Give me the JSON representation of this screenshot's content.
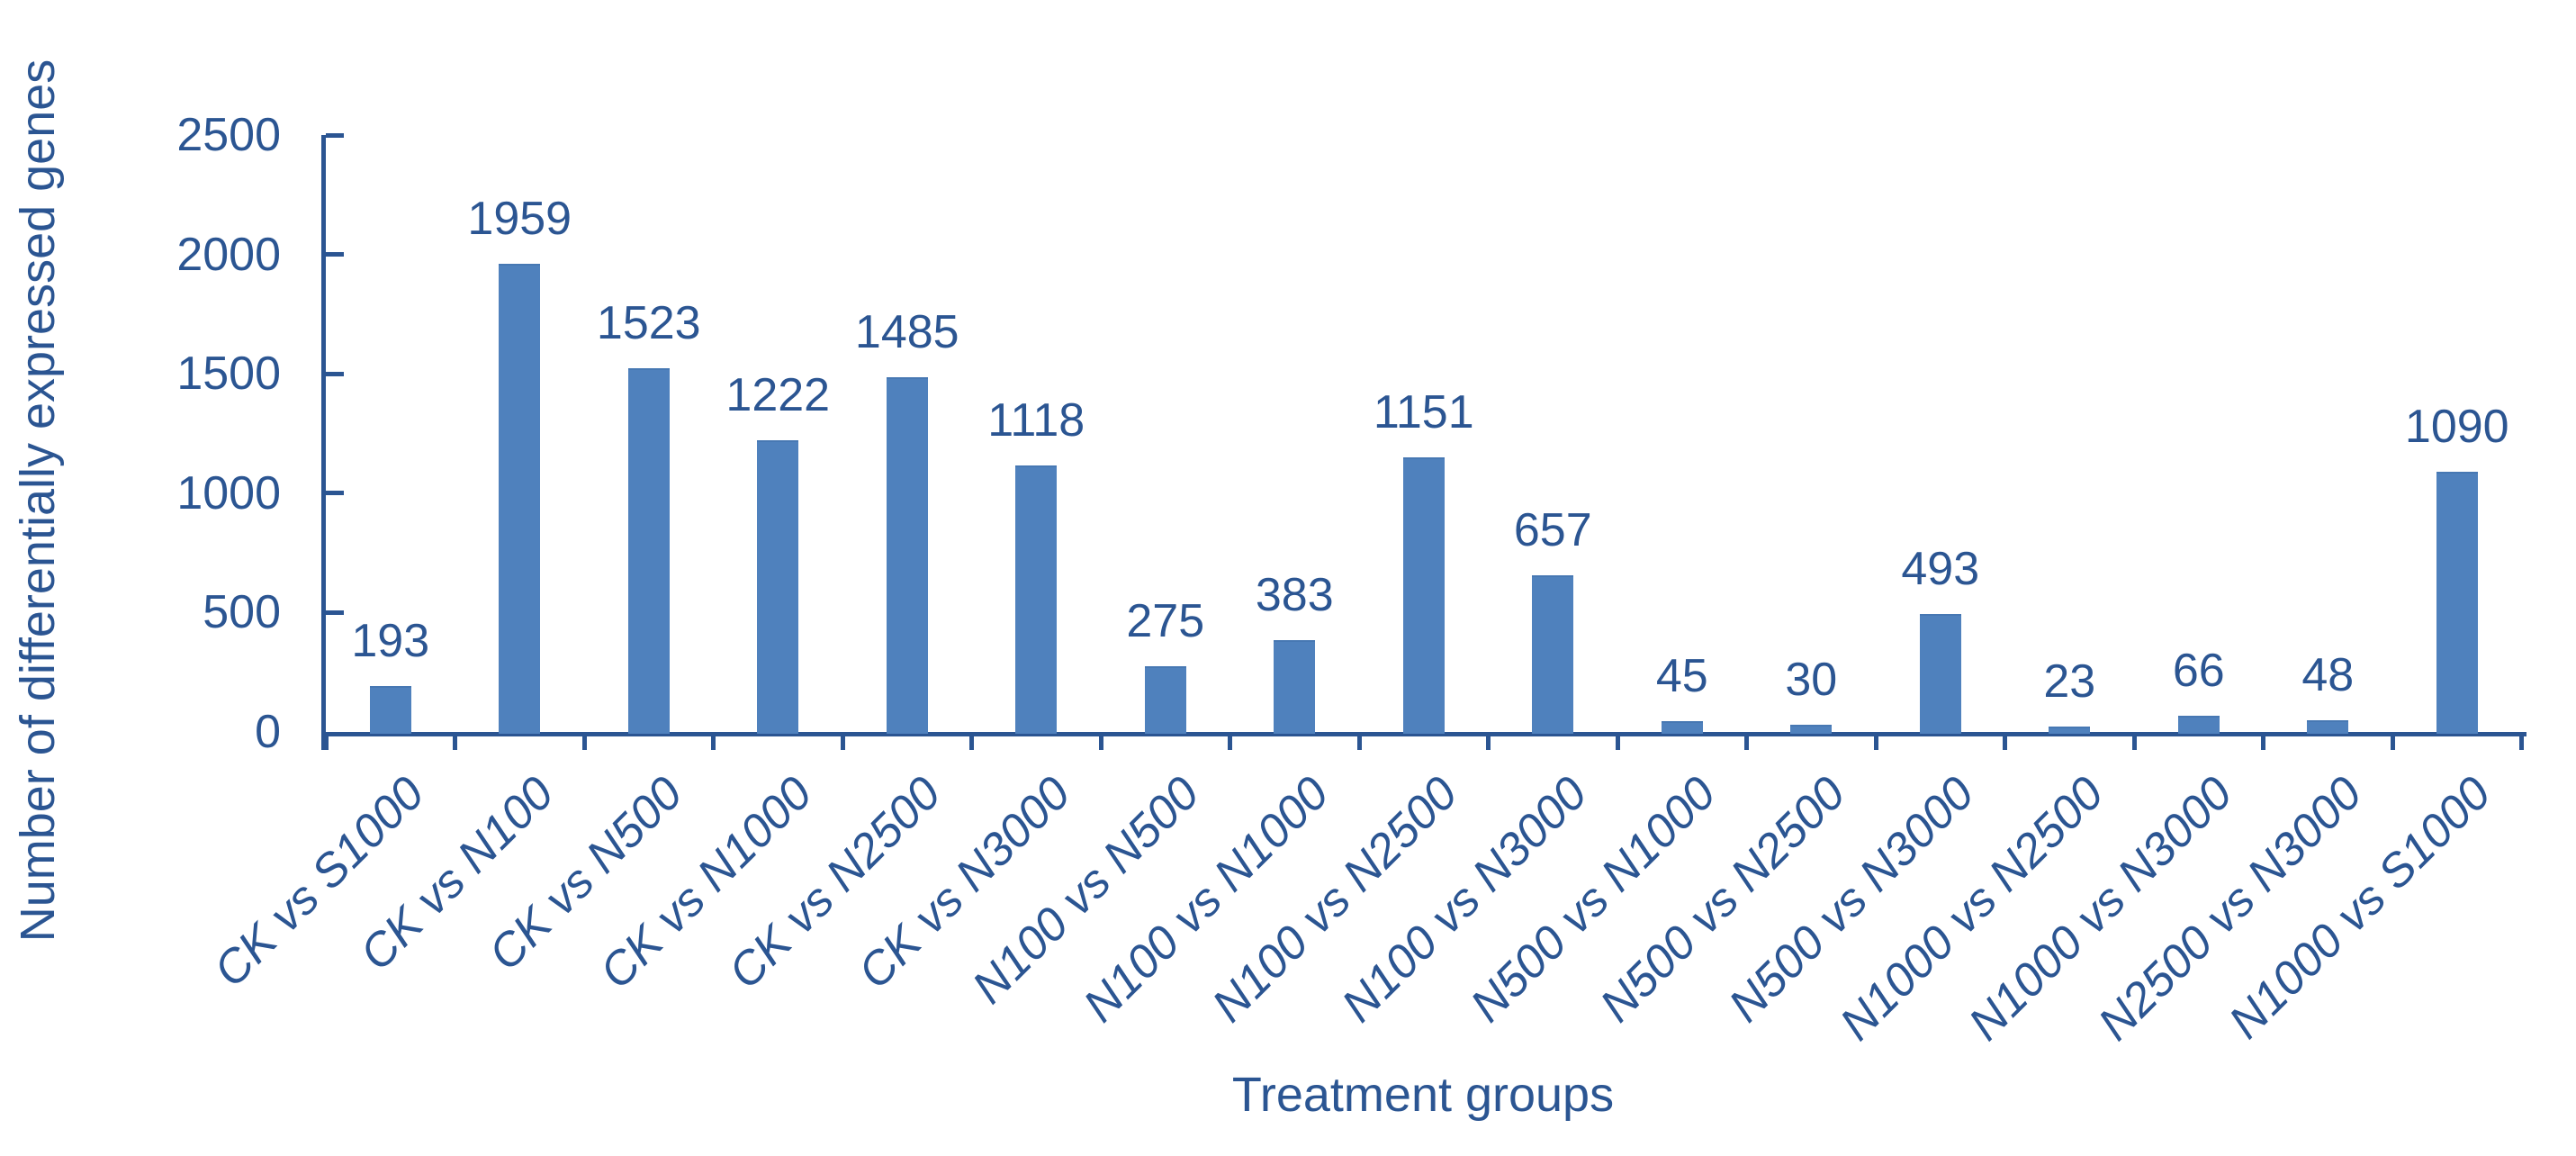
{
  "chart_data": {
    "type": "bar",
    "xlabel": "Treatment groups",
    "ylabel": "Number of differentially expressed genes",
    "categories": [
      "CK vs S1000",
      "CK vs N100",
      "CK vs N500",
      "CK vs N1000",
      "CK vs N2500",
      "CK vs N3000",
      "N100 vs N500",
      "N100 vs N1000",
      "N100 vs N2500",
      "N100 vs N3000",
      "N500 vs N1000",
      "N500 vs N2500",
      "N500 vs N3000",
      "N1000 vs N2500",
      "N1000 vs N3000",
      "N2500 vs N3000",
      "N1000 vs S1000"
    ],
    "values": [
      193,
      1959,
      1523,
      1222,
      1485,
      1118,
      275,
      383,
      1151,
      657,
      45,
      30,
      493,
      23,
      66,
      48,
      1090
    ],
    "ylim": [
      0,
      2500
    ],
    "yticks": [
      0,
      500,
      1000,
      1500,
      2000,
      2500
    ],
    "grid": false,
    "legend": false,
    "bar_labels_shown": true,
    "colors": {
      "bar": "#4F81BD",
      "text": "#2B5592",
      "axis": "#2B5592"
    }
  }
}
